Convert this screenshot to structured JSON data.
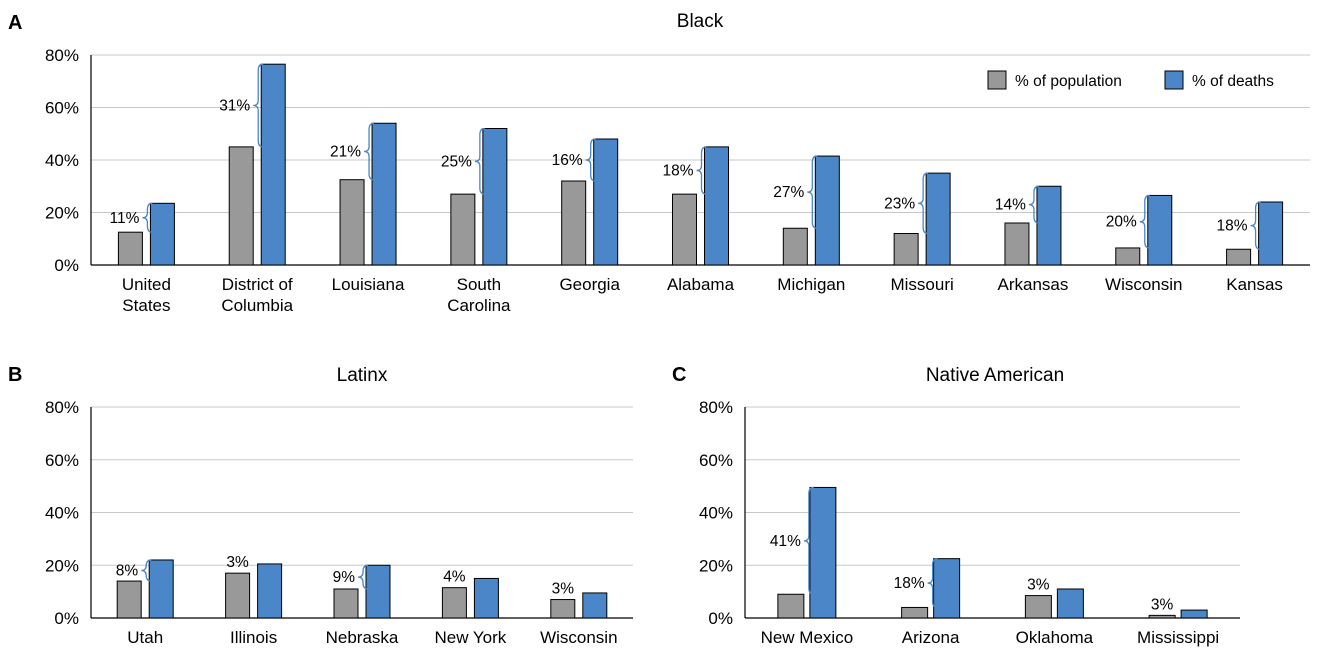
{
  "legend": {
    "pop_label": "% of population",
    "death_label": "% of deaths"
  },
  "colors": {
    "population": "#999999",
    "deaths": "#4a86c8",
    "bracket": "#4a86c8"
  },
  "chart_data": [
    {
      "type": "bar",
      "panel": "A",
      "title": "Black",
      "xlabel": "",
      "ylabel": "",
      "ylim": [
        0,
        80
      ],
      "yticks": [
        "0%",
        "20%",
        "40%",
        "60%",
        "80%"
      ],
      "categories": [
        [
          "United",
          "States"
        ],
        [
          "District of",
          "Columbia"
        ],
        [
          "Louisiana"
        ],
        [
          "South",
          "Carolina"
        ],
        [
          "Georgia"
        ],
        [
          "Alabama"
        ],
        [
          "Michigan"
        ],
        [
          "Missouri"
        ],
        [
          "Arkansas"
        ],
        [
          "Wisconsin"
        ],
        [
          "Kansas"
        ]
      ],
      "series": [
        {
          "name": "% of population",
          "values": [
            12.5,
            45,
            32.5,
            27,
            32,
            27,
            14,
            12,
            16,
            6.5,
            6
          ]
        },
        {
          "name": "% of deaths",
          "values": [
            23.5,
            76.5,
            54,
            52,
            48,
            45,
            41.5,
            35,
            30,
            26.5,
            24
          ]
        }
      ],
      "differences": [
        "11%",
        "31%",
        "21%",
        "25%",
        "16%",
        "18%",
        "27%",
        "23%",
        "14%",
        "20%",
        "18%"
      ],
      "legend_position": "top-right"
    },
    {
      "type": "bar",
      "panel": "B",
      "title": "Latinx",
      "xlabel": "",
      "ylabel": "",
      "ylim": [
        0,
        80
      ],
      "yticks": [
        "0%",
        "20%",
        "40%",
        "60%",
        "80%"
      ],
      "categories": [
        [
          "Utah"
        ],
        [
          "Illinois"
        ],
        [
          "Nebraska"
        ],
        [
          "New York"
        ],
        [
          "Wisconsin"
        ]
      ],
      "series": [
        {
          "name": "% of population",
          "values": [
            14,
            17,
            11,
            11.5,
            7
          ]
        },
        {
          "name": "% of deaths",
          "values": [
            22,
            20.5,
            20,
            15,
            9.5
          ]
        }
      ],
      "differences": [
        "8%",
        "3%",
        "9%",
        "4%",
        "3%"
      ],
      "bracketed": [
        true,
        false,
        true,
        false,
        false
      ]
    },
    {
      "type": "bar",
      "panel": "C",
      "title": "Native American",
      "xlabel": "",
      "ylabel": "",
      "ylim": [
        0,
        80
      ],
      "yticks": [
        "0%",
        "20%",
        "40%",
        "60%",
        "80%"
      ],
      "categories": [
        [
          "New Mexico"
        ],
        [
          "Arizona"
        ],
        [
          "Oklahoma"
        ],
        [
          "Mississippi"
        ]
      ],
      "series": [
        {
          "name": "% of population",
          "values": [
            9,
            4,
            8.5,
            1
          ]
        },
        {
          "name": "% of deaths",
          "values": [
            49.5,
            22.5,
            11,
            3
          ]
        }
      ],
      "differences": [
        "41%",
        "18%",
        "3%",
        "3%"
      ],
      "bracketed": [
        true,
        true,
        false,
        false
      ]
    }
  ]
}
